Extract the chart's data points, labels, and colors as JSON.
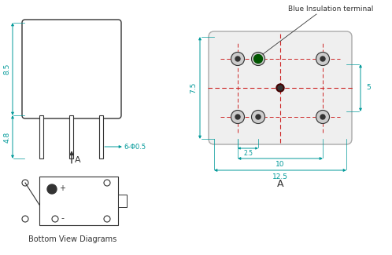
{
  "bg_color": "#ffffff",
  "cyan_color": "#009999",
  "red_dash_color": "#CC2222",
  "gray_color": "#999999",
  "dark_color": "#333333",
  "green_color": "#005500",
  "title_annotation": "Blue Insulation terminal",
  "label_A_left": "A",
  "label_A_right": "A",
  "label_bottom": "Bottom View Diagrams",
  "dim_85": "8.5",
  "dim_48": "4.8",
  "dim_phi": "6-Φ0.5",
  "dim_75": "7.5",
  "dim_5": "5",
  "dim_25": "2.5",
  "dim_10": "10",
  "dim_125": "12.5",
  "figsize": [
    4.98,
    3.25
  ],
  "dpi": 100,
  "xlim": [
    0,
    498
  ],
  "ylim": [
    0,
    325
  ]
}
